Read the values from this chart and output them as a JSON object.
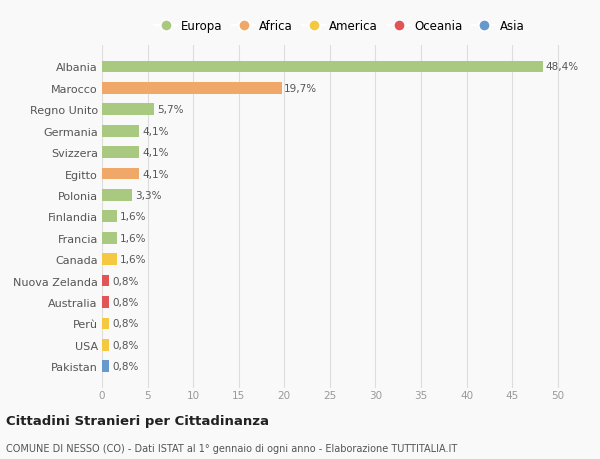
{
  "categories": [
    "Albania",
    "Marocco",
    "Regno Unito",
    "Germania",
    "Svizzera",
    "Egitto",
    "Polonia",
    "Finlandia",
    "Francia",
    "Canada",
    "Nuova Zelanda",
    "Australia",
    "Perù",
    "USA",
    "Pakistan"
  ],
  "values": [
    48.4,
    19.7,
    5.7,
    4.1,
    4.1,
    4.1,
    3.3,
    1.6,
    1.6,
    1.6,
    0.8,
    0.8,
    0.8,
    0.8,
    0.8
  ],
  "labels": [
    "48,4%",
    "19,7%",
    "5,7%",
    "4,1%",
    "4,1%",
    "4,1%",
    "3,3%",
    "1,6%",
    "1,6%",
    "1,6%",
    "0,8%",
    "0,8%",
    "0,8%",
    "0,8%",
    "0,8%"
  ],
  "colors": [
    "#a8c97f",
    "#f0a868",
    "#a8c97f",
    "#a8c97f",
    "#a8c97f",
    "#f0a868",
    "#a8c97f",
    "#a8c97f",
    "#a8c97f",
    "#f5c842",
    "#e05555",
    "#e05555",
    "#f5c842",
    "#f5c842",
    "#6699cc"
  ],
  "legend_labels": [
    "Europa",
    "Africa",
    "America",
    "Oceania",
    "Asia"
  ],
  "legend_colors": [
    "#a8c97f",
    "#f0a868",
    "#f5c842",
    "#e05555",
    "#6699cc"
  ],
  "title": "Cittadini Stranieri per Cittadinanza",
  "subtitle": "COMUNE DI NESSO (CO) - Dati ISTAT al 1° gennaio di ogni anno - Elaborazione TUTTITALIA.IT",
  "xlim": [
    0,
    52
  ],
  "xticks": [
    0,
    5,
    10,
    15,
    20,
    25,
    30,
    35,
    40,
    45,
    50
  ],
  "background_color": "#f9f9f9",
  "grid_color": "#dddddd",
  "bar_height": 0.55
}
